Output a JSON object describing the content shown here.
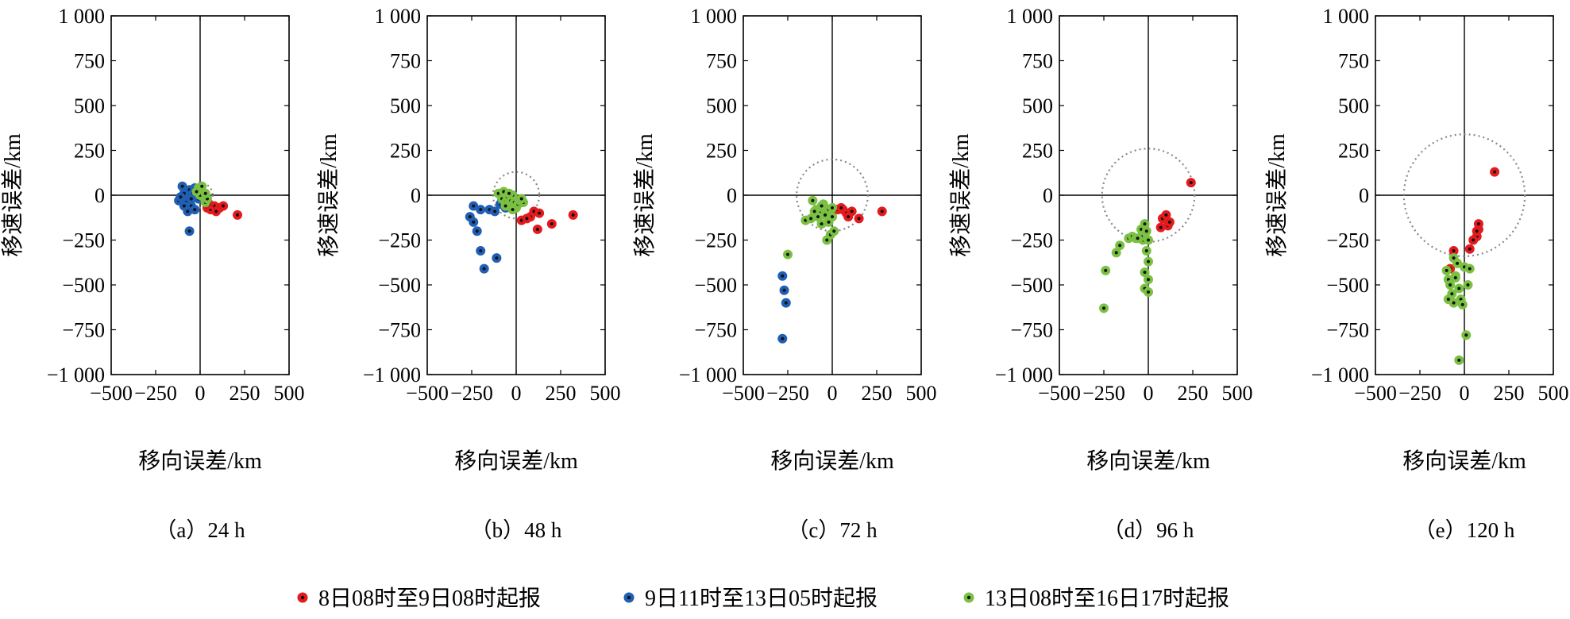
{
  "chart_data": {
    "type": "scatter",
    "x_label": "移向误差/km",
    "y_label": "移速误差/km",
    "xlim": [
      -500,
      500
    ],
    "ylim": [
      -1000,
      1000
    ],
    "x_ticks": [
      "−500",
      "−250",
      "0",
      "250",
      "500"
    ],
    "y_ticks": [
      "1 000",
      "750",
      "500",
      "250",
      "0",
      "−250",
      "−500",
      "−750",
      "−1 000"
    ],
    "legend": [
      {
        "name": "8日08时至9日08时起报",
        "color": "#e41a1c"
      },
      {
        "name": "9日11时至13日05时起报",
        "color": "#1f5fb4"
      },
      {
        "name": "13日08时至16日17时起报",
        "color": "#7ac143"
      }
    ],
    "panels": [
      {
        "caption": "（a）24 h",
        "circle_radius": 70,
        "series": [
          {
            "name": "8日08时至9日08时起报",
            "points": [
              [
                40,
                -70
              ],
              [
                60,
                -80
              ],
              [
                80,
                -60
              ],
              [
                110,
                -70
              ],
              [
                130,
                -60
              ],
              [
                210,
                -110
              ],
              [
                50,
                -50
              ],
              [
                90,
                -90
              ]
            ]
          },
          {
            "name": "9日11时至13日05时起报",
            "points": [
              [
                -120,
                -30
              ],
              [
                -100,
                50
              ],
              [
                -90,
                10
              ],
              [
                -80,
                -40
              ],
              [
                -70,
                -90
              ],
              [
                -60,
                30
              ],
              [
                -50,
                -60
              ],
              [
                -40,
                10
              ],
              [
                -30,
                -80
              ],
              [
                -20,
                0
              ],
              [
                -10,
                -20
              ],
              [
                -110,
                -10
              ],
              [
                -60,
                -200
              ],
              [
                -50,
                -20
              ],
              [
                -90,
                -60
              ],
              [
                -30,
                40
              ]
            ]
          },
          {
            "name": "13日08时至16日17时起报",
            "points": [
              [
                0,
                30
              ],
              [
                -10,
                40
              ],
              [
                10,
                20
              ],
              [
                20,
                -10
              ],
              [
                30,
                -40
              ],
              [
                0,
                0
              ],
              [
                -20,
                20
              ],
              [
                10,
                50
              ],
              [
                40,
                -20
              ],
              [
                30,
                10
              ]
            ]
          }
        ]
      },
      {
        "caption": "（b）48 h",
        "circle_radius": 130,
        "series": [
          {
            "name": "8日08时至9日08时起报",
            "points": [
              [
                30,
                -140
              ],
              [
                80,
                -120
              ],
              [
                100,
                -90
              ],
              [
                130,
                -100
              ],
              [
                120,
                -190
              ],
              [
                200,
                -160
              ],
              [
                320,
                -110
              ],
              [
                60,
                -130
              ]
            ]
          },
          {
            "name": "9日11时至13日05时起报",
            "points": [
              [
                -260,
                -120
              ],
              [
                -240,
                -60
              ],
              [
                -240,
                -150
              ],
              [
                -220,
                -200
              ],
              [
                -200,
                -80
              ],
              [
                -200,
                -310
              ],
              [
                -180,
                -410
              ],
              [
                -150,
                -80
              ],
              [
                -120,
                -90
              ],
              [
                -110,
                -350
              ],
              [
                -90,
                -50
              ],
              [
                -60,
                -70
              ],
              [
                -80,
                -30
              ]
            ]
          },
          {
            "name": "13日08时至16日17时起报",
            "points": [
              [
                -100,
                10
              ],
              [
                -80,
                -20
              ],
              [
                -70,
                20
              ],
              [
                -60,
                -40
              ],
              [
                -50,
                -10
              ],
              [
                -40,
                -60
              ],
              [
                -30,
                -30
              ],
              [
                -20,
                0
              ],
              [
                -10,
                -40
              ],
              [
                0,
                -70
              ],
              [
                10,
                -50
              ],
              [
                20,
                -30
              ],
              [
                40,
                -40
              ],
              [
                -40,
                10
              ],
              [
                -20,
                -80
              ],
              [
                -60,
                -60
              ],
              [
                30,
                -20
              ]
            ]
          }
        ]
      },
      {
        "caption": "（c）72 h",
        "circle_radius": 200,
        "series": [
          {
            "name": "8日08时至9日08时起报",
            "points": [
              [
                30,
                -80
              ],
              [
                60,
                -80
              ],
              [
                80,
                -100
              ],
              [
                90,
                -120
              ],
              [
                110,
                -90
              ],
              [
                150,
                -130
              ],
              [
                280,
                -90
              ],
              [
                50,
                -70
              ]
            ]
          },
          {
            "name": "9日11时至13日05时起报",
            "points": [
              [
                -280,
                -450
              ],
              [
                -270,
                -530
              ],
              [
                -260,
                -600
              ],
              [
                -280,
                -800
              ]
            ]
          },
          {
            "name": "13日08时至16日17时起报",
            "points": [
              [
                -250,
                -330
              ],
              [
                -150,
                -140
              ],
              [
                -120,
                -130
              ],
              [
                -110,
                -30
              ],
              [
                -90,
                -80
              ],
              [
                -70,
                -100
              ],
              [
                -60,
                -160
              ],
              [
                -50,
                -50
              ],
              [
                -40,
                -70
              ],
              [
                -30,
                -250
              ],
              [
                -20,
                -150
              ],
              [
                -10,
                -220
              ],
              [
                0,
                -120
              ],
              [
                10,
                -200
              ],
              [
                -80,
                -120
              ],
              [
                -60,
                -60
              ],
              [
                -40,
                -110
              ],
              [
                -20,
                -80
              ],
              [
                0,
                -70
              ],
              [
                -100,
                -90
              ]
            ]
          }
        ]
      },
      {
        "caption": "（d）96 h",
        "circle_radius": 260,
        "series": [
          {
            "name": "8日08时至9日08时起报",
            "points": [
              [
                240,
                70
              ],
              [
                80,
                -130
              ],
              [
                100,
                -110
              ],
              [
                110,
                -170
              ],
              [
                70,
                -180
              ],
              [
                120,
                -150
              ]
            ]
          },
          {
            "name": "9日11时至13日05时起报",
            "points": []
          },
          {
            "name": "13日08时至16日17时起报",
            "points": [
              [
                -250,
                -630
              ],
              [
                -240,
                -420
              ],
              [
                -180,
                -320
              ],
              [
                -160,
                -280
              ],
              [
                -110,
                -240
              ],
              [
                -90,
                -230
              ],
              [
                -70,
                -240
              ],
              [
                -40,
                -190
              ],
              [
                -30,
                -250
              ],
              [
                -20,
                -430
              ],
              [
                -20,
                -520
              ],
              [
                -10,
                -310
              ],
              [
                0,
                -370
              ],
              [
                0,
                -470
              ],
              [
                0,
                -540
              ],
              [
                -10,
                -200
              ],
              [
                -20,
                -160
              ],
              [
                0,
                -250
              ],
              [
                -40,
                -230
              ],
              [
                -60,
                -240
              ]
            ]
          }
        ]
      },
      {
        "caption": "（e）120 h",
        "circle_radius": 340,
        "series": [
          {
            "name": "8日08时至9日08时起报",
            "points": [
              [
                170,
                130
              ],
              [
                80,
                -190
              ],
              [
                80,
                -160
              ],
              [
                70,
                -230
              ],
              [
                50,
                -250
              ],
              [
                30,
                -300
              ],
              [
                -60,
                -310
              ],
              [
                -80,
                -410
              ],
              [
                70,
                -200
              ]
            ]
          },
          {
            "name": "9日11时至13日05时起报",
            "points": []
          },
          {
            "name": "13日08时至16日17时起报",
            "points": [
              [
                -100,
                -420
              ],
              [
                -90,
                -470
              ],
              [
                -80,
                -500
              ],
              [
                -70,
                -550
              ],
              [
                -60,
                -600
              ],
              [
                -50,
                -450
              ],
              [
                -40,
                -380
              ],
              [
                -30,
                -520
              ],
              [
                -20,
                -580
              ],
              [
                -10,
                -610
              ],
              [
                0,
                -400
              ],
              [
                10,
                -780
              ],
              [
                20,
                -500
              ],
              [
                30,
                -410
              ],
              [
                -30,
                -920
              ],
              [
                -60,
                -350
              ],
              [
                -90,
                -580
              ],
              [
                -50,
                -460
              ]
            ]
          }
        ]
      }
    ]
  }
}
